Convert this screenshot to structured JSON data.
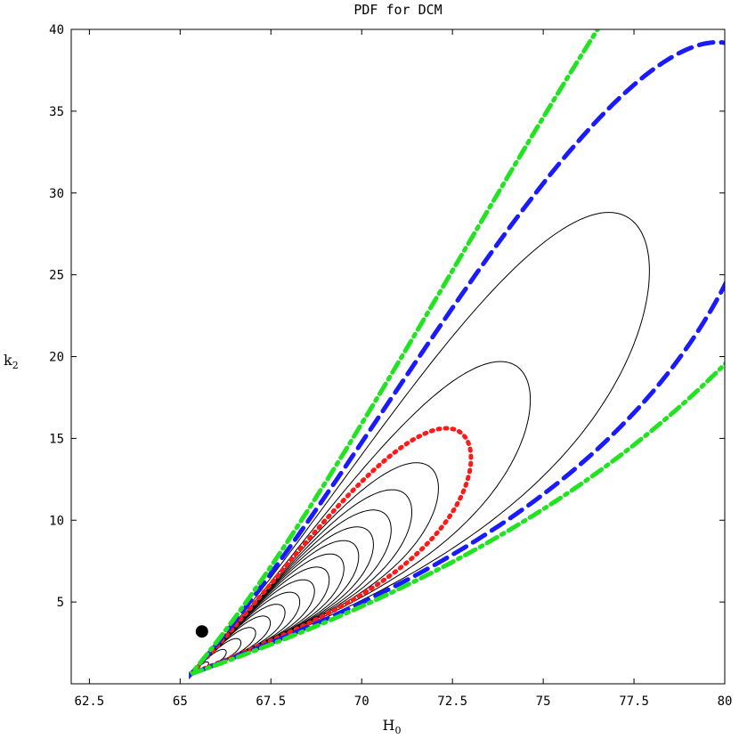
{
  "chart_data": {
    "type": "contour",
    "title": "PDF for DCM",
    "xlabel": "H",
    "xlabel_sub": "0",
    "ylabel": "k",
    "ylabel_sub": "2",
    "xlim": [
      62,
      80
    ],
    "ylim": [
      0,
      40
    ],
    "x_ticks": [
      "62.5",
      "65",
      "67.5",
      "70",
      "72.5",
      "75",
      "77.5",
      "80"
    ],
    "y_ticks": [
      "5",
      "10",
      "15",
      "20",
      "25",
      "30",
      "35",
      "40"
    ],
    "peak": {
      "x": 65.6,
      "y": 3.2
    },
    "contour_shape": {
      "x0": 65.3,
      "y0": 0.6,
      "axis_angle_deg": 72.0,
      "major_x": 8.0,
      "major_y": 11.3,
      "minor_scale_deg": 16.0
    },
    "inner_contour_scales": [
      0.06,
      0.12,
      0.17,
      0.22,
      0.27,
      0.32,
      0.37,
      0.42,
      0.47,
      0.52,
      0.57,
      0.62,
      0.68,
      0.75,
      0.84,
      1.15,
      1.55
    ],
    "confidence_scales": [
      {
        "name": "red dotted",
        "scale": 0.95,
        "color": "#ff1a1a"
      },
      {
        "name": "blue dashed",
        "scale": 1.95,
        "color": "#1a1aff"
      },
      {
        "name": "green dash-dot",
        "scale": 2.6,
        "color": "#22e322"
      }
    ],
    "colors": {
      "thin": "#000000",
      "red": "#ff1a1a",
      "blue": "#1a1aff",
      "green": "#22e322"
    }
  }
}
